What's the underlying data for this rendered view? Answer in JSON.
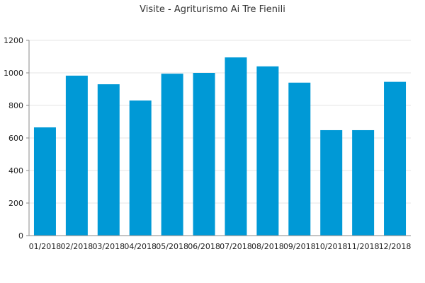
{
  "chart_data": {
    "type": "bar",
    "title": "Visite - Agriturismo Ai Tre Fienili",
    "xlabel": "",
    "ylabel": "",
    "categories": [
      "01/2018",
      "02/2018",
      "03/2018",
      "04/2018",
      "05/2018",
      "06/2018",
      "07/2018",
      "08/2018",
      "09/2018",
      "10/2018",
      "11/2018",
      "12/2018"
    ],
    "values": [
      665,
      983,
      930,
      830,
      995,
      1000,
      1095,
      1040,
      940,
      648,
      648,
      945
    ],
    "ylim": [
      0,
      1200
    ],
    "yticks": [
      0,
      200,
      400,
      600,
      800,
      1000,
      1200
    ],
    "grid": true,
    "bar_color": "#0099d6"
  }
}
